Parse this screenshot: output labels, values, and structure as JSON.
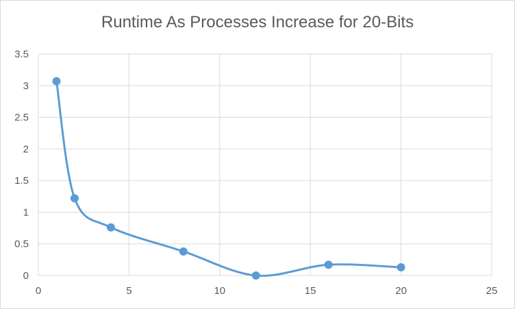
{
  "chart_data": {
    "type": "scatter",
    "title": "Runtime As Processes Increase for 20-Bits",
    "xlabel": "",
    "ylabel": "",
    "xlim": [
      0,
      25
    ],
    "ylim": [
      0,
      3.5
    ],
    "x_ticks": [
      "0",
      "5",
      "10",
      "15",
      "20",
      "25"
    ],
    "y_ticks": [
      "0",
      "0.5",
      "1",
      "1.5",
      "2",
      "2.5",
      "3",
      "3.5"
    ],
    "grid": true,
    "smooth_line": true,
    "series": [
      {
        "x": [
          1,
          2,
          4,
          8,
          12,
          16,
          20
        ],
        "y": [
          3.07,
          1.22,
          0.76,
          0.38,
          0.0,
          0.17,
          0.13
        ]
      }
    ],
    "colors": {
      "series": "#5b9bd5",
      "grid": "#d9d9d9",
      "text": "#595959"
    }
  }
}
